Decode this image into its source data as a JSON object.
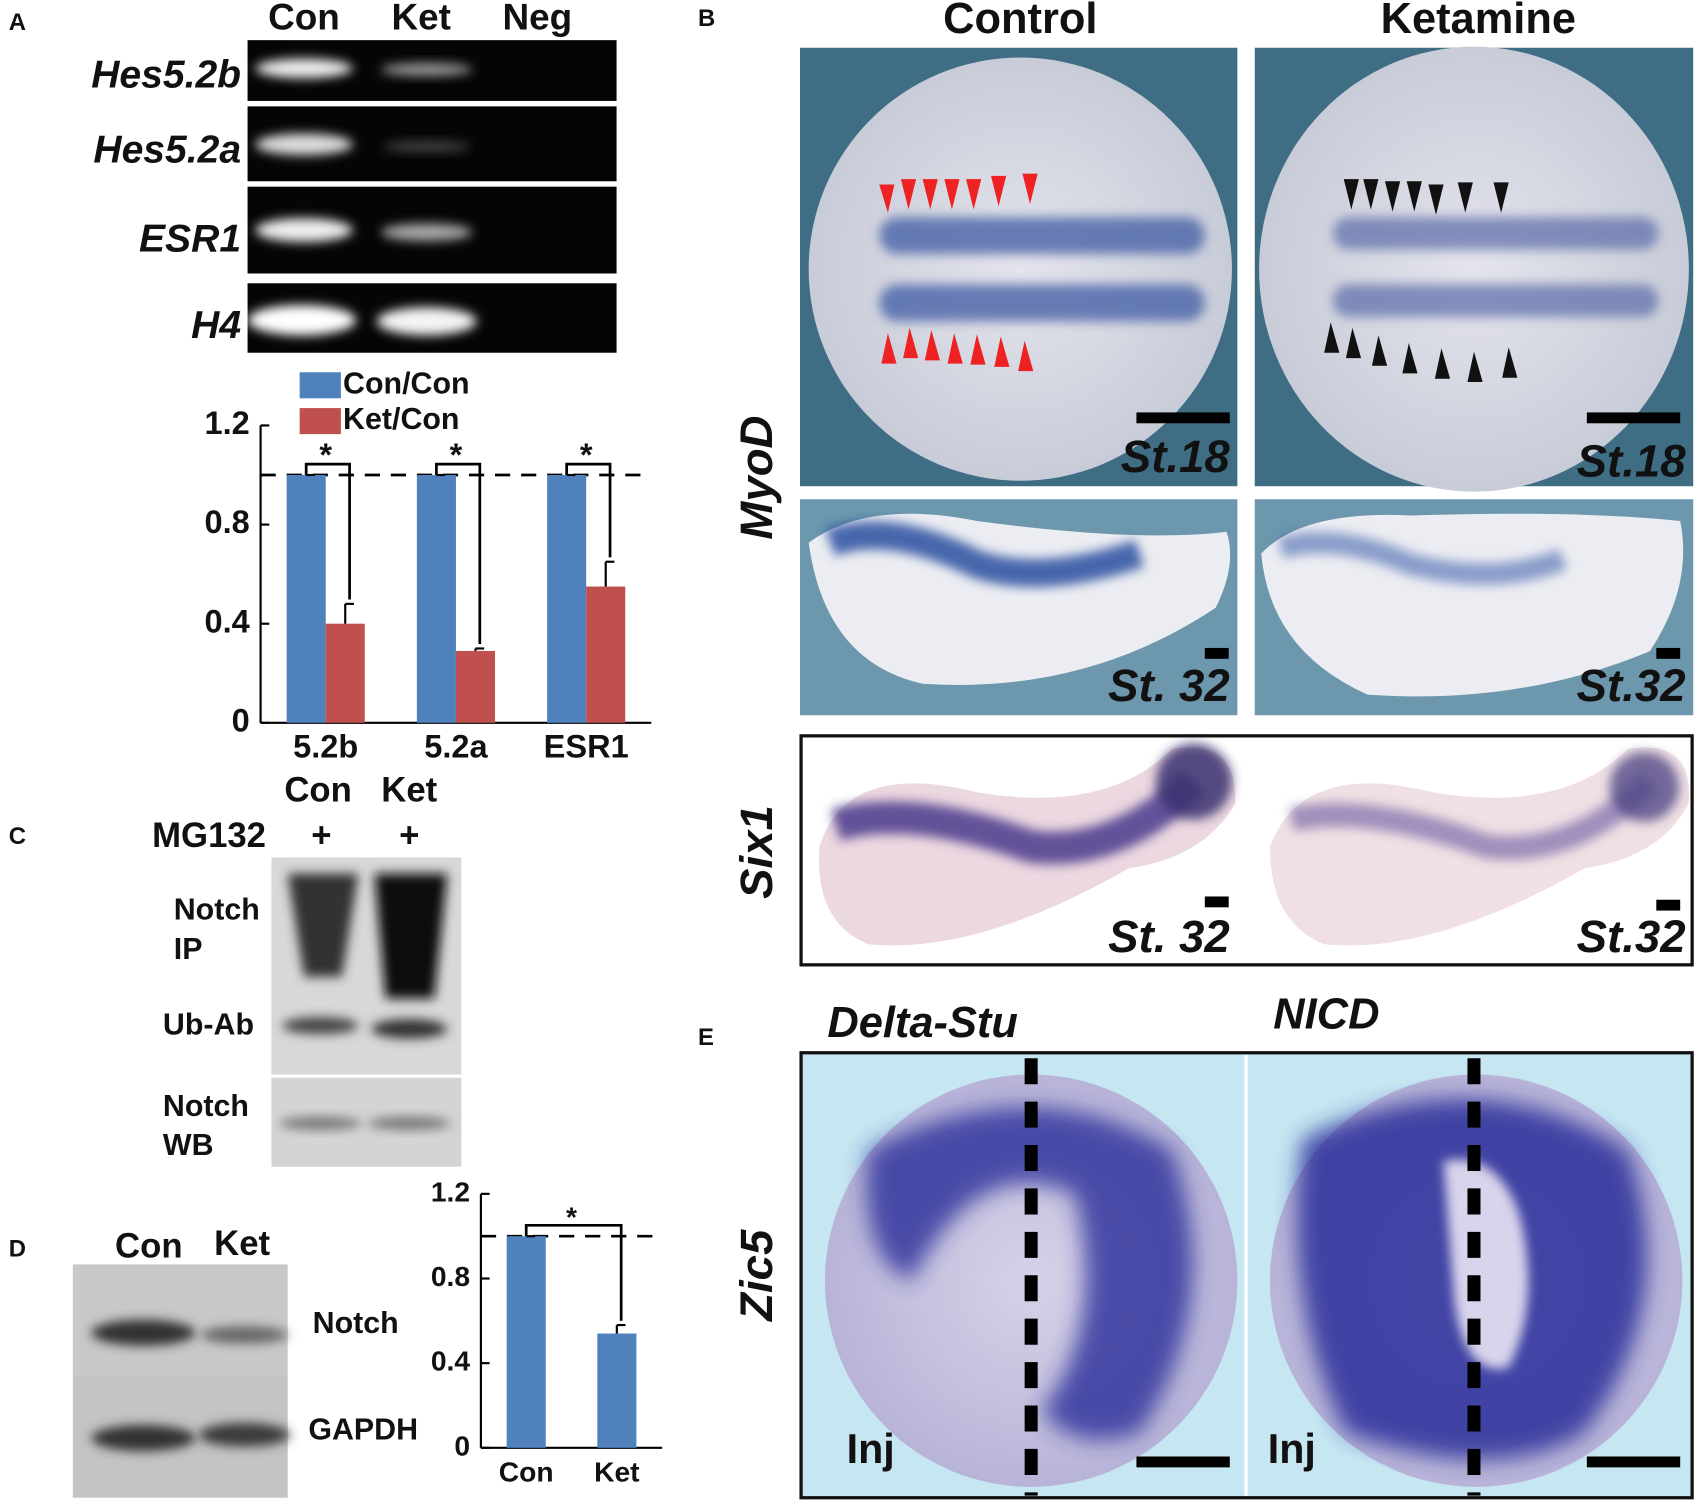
{
  "panel_labels": [
    "A",
    "B",
    "C",
    "D",
    "E"
  ],
  "panel_a": {
    "lanes": [
      "Con",
      "Ket",
      "Neg"
    ],
    "genes": [
      "Hes5.2b",
      "Hes5.2a",
      "ESR1",
      "H4"
    ]
  },
  "panel_b": {
    "columns": [
      "Control",
      "Ketamine"
    ],
    "markers": [
      "MyoD",
      "Six1"
    ],
    "stages": [
      "St.18",
      "St.18",
      "St. 32",
      "St.32",
      "St. 32",
      "St.32"
    ]
  },
  "panel_c": {
    "lanes": [
      "Con",
      "Ket"
    ],
    "treatment": "MG132",
    "treatment_marks": [
      "+",
      "+"
    ],
    "blot_labels": [
      "Notch",
      "IP",
      "Ub-Ab",
      "Notch",
      "WB"
    ]
  },
  "panel_d": {
    "lanes": [
      "Con",
      "Ket"
    ],
    "blot_labels": [
      "Notch",
      "GAPDH"
    ]
  },
  "panel_e": {
    "columns": [
      "Delta-Stu",
      "NICD"
    ],
    "marker": "Zic5",
    "inj_labels": [
      "Inj",
      "Inj"
    ]
  },
  "chart_data": [
    {
      "type": "bar",
      "categories": [
        "5.2b",
        "5.2a",
        "ESR1"
      ],
      "series": [
        {
          "name": "Con/Con",
          "color": "#4f81bd",
          "values": [
            1,
            1,
            1
          ],
          "errors": [
            0,
            0,
            0
          ]
        },
        {
          "name": "Ket/Con",
          "color": "#c0504d",
          "values": [
            0.4,
            0.29,
            0.55
          ],
          "errors": [
            0.08,
            0.01,
            0.1
          ]
        }
      ],
      "ylim": [
        0,
        1.2
      ],
      "yticks": [
        0,
        0.4,
        0.8,
        1.2
      ],
      "reference_line": 1,
      "annotations": [
        "*",
        "*",
        "*"
      ]
    },
    {
      "type": "bar",
      "categories": [
        "Con",
        "Ket"
      ],
      "color": "#4f81bd",
      "values": [
        1,
        0.54
      ],
      "errors": [
        0,
        0.04
      ],
      "ylim": [
        0,
        1.2
      ],
      "yticks": [
        0,
        0.4,
        0.8,
        1.2
      ],
      "reference_line": 1,
      "annotation": "*"
    }
  ]
}
